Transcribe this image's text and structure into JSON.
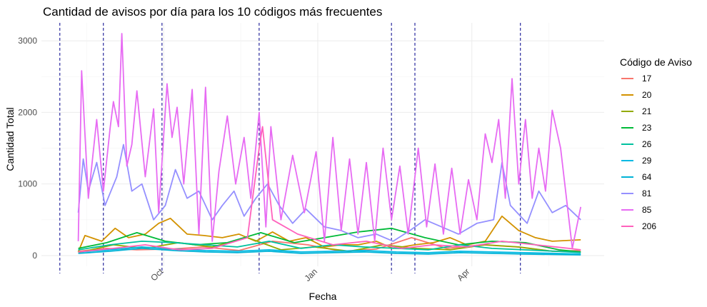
{
  "chart_data": {
    "type": "line",
    "title": "Cantidad de avisos por día para los 10 códigos más frecuentes",
    "xlabel": "Fecha",
    "ylabel": "Cantidad Total",
    "ylim": [
      -150,
      3250
    ],
    "yticks": [
      0,
      1000,
      2000,
      3000
    ],
    "xticks": [
      {
        "label": "Oct",
        "date": "2023-10-01"
      },
      {
        "label": "Jan",
        "date": "2024-01-01"
      },
      {
        "label": "Apr",
        "date": "2024-04-01"
      }
    ],
    "xlim": [
      "2023-07-20",
      "2024-06-20"
    ],
    "vlines": [
      "2023-07-31",
      "2023-08-26",
      "2023-09-30",
      "2023-11-27",
      "2024-02-14",
      "2024-02-28",
      "2024-05-01"
    ],
    "grid": true,
    "legend": {
      "title": "Código de Aviso",
      "placement": "right"
    },
    "series": [
      {
        "name": "17",
        "color": "#F8766D",
        "x": [
          "2023-08-11",
          "2023-08-28",
          "2023-09-15",
          "2023-10-05",
          "2023-10-25",
          "2023-11-15",
          "2023-12-05",
          "2023-12-26",
          "2024-01-15",
          "2024-02-05",
          "2024-02-26",
          "2024-03-18",
          "2024-04-08",
          "2024-04-29",
          "2024-05-20",
          "2024-06-06"
        ],
        "values": [
          60,
          100,
          80,
          90,
          120,
          70,
          200,
          150,
          60,
          90,
          250,
          100,
          150,
          120,
          60,
          70
        ]
      },
      {
        "name": "20",
        "color": "#D39200",
        "x": [
          "2023-08-11",
          "2023-08-15",
          "2023-08-25",
          "2023-09-02",
          "2023-09-10",
          "2023-09-20",
          "2023-09-28",
          "2023-10-05",
          "2023-10-15",
          "2023-10-25",
          "2023-11-05",
          "2023-11-15",
          "2023-11-25",
          "2023-12-05",
          "2023-12-15",
          "2023-12-25",
          "2024-01-05",
          "2024-01-15",
          "2024-01-25",
          "2024-02-05",
          "2024-02-15",
          "2024-02-28",
          "2024-03-10",
          "2024-03-20",
          "2024-03-30",
          "2024-04-10",
          "2024-04-20",
          "2024-04-30",
          "2024-05-10",
          "2024-05-20",
          "2024-06-06"
        ],
        "values": [
          50,
          280,
          200,
          380,
          250,
          300,
          450,
          520,
          300,
          280,
          250,
          300,
          200,
          330,
          200,
          250,
          120,
          150,
          150,
          200,
          100,
          150,
          180,
          250,
          150,
          200,
          550,
          350,
          250,
          200,
          220
        ]
      },
      {
        "name": "21",
        "color": "#93AA00",
        "x": [
          "2023-08-11",
          "2023-09-01",
          "2023-09-20",
          "2023-10-10",
          "2023-10-30",
          "2023-11-20",
          "2023-12-10",
          "2023-12-30",
          "2024-01-20",
          "2024-02-09",
          "2024-02-29",
          "2024-03-20",
          "2024-04-10",
          "2024-04-30",
          "2024-05-20",
          "2024-06-06"
        ],
        "values": [
          40,
          150,
          100,
          180,
          120,
          250,
          80,
          120,
          60,
          150,
          100,
          80,
          150,
          120,
          60,
          50
        ]
      },
      {
        "name": "23",
        "color": "#00BA38",
        "x": [
          "2023-08-11",
          "2023-08-28",
          "2023-09-15",
          "2023-10-02",
          "2023-10-20",
          "2023-11-08",
          "2023-11-28",
          "2023-12-18",
          "2024-01-05",
          "2024-01-25",
          "2024-02-14",
          "2024-03-05",
          "2024-03-25",
          "2024-04-14",
          "2024-05-04",
          "2024-05-24",
          "2024-06-06"
        ],
        "values": [
          100,
          180,
          320,
          200,
          150,
          180,
          320,
          180,
          250,
          330,
          380,
          250,
          150,
          200,
          180,
          80,
          50
        ]
      },
      {
        "name": "26",
        "color": "#00C19F",
        "x": [
          "2023-08-11",
          "2023-08-30",
          "2023-09-18",
          "2023-10-07",
          "2023-10-26",
          "2023-11-14",
          "2023-12-03",
          "2023-12-22",
          "2024-01-10",
          "2024-01-29",
          "2024-02-17",
          "2024-03-07",
          "2024-03-26",
          "2024-04-14",
          "2024-05-03",
          "2024-05-22",
          "2024-06-06"
        ],
        "values": [
          80,
          150,
          200,
          180,
          150,
          120,
          200,
          100,
          150,
          120,
          100,
          80,
          150,
          100,
          80,
          60,
          40
        ]
      },
      {
        "name": "29",
        "color": "#00B9E3",
        "x": [
          "2023-08-11",
          "2023-08-30",
          "2023-09-18",
          "2023-10-07",
          "2023-10-26",
          "2023-11-14",
          "2023-12-03",
          "2023-12-22",
          "2024-01-10",
          "2024-01-29",
          "2024-02-17",
          "2024-03-07",
          "2024-03-26",
          "2024-04-14",
          "2024-05-03",
          "2024-05-22",
          "2024-06-06"
        ],
        "values": [
          50,
          80,
          120,
          90,
          70,
          60,
          80,
          50,
          60,
          70,
          50,
          40,
          60,
          50,
          40,
          30,
          20
        ]
      },
      {
        "name": "64",
        "color": "#00B2D6",
        "x": [
          "2023-08-11",
          "2023-08-30",
          "2023-09-18",
          "2023-10-07",
          "2023-10-26",
          "2023-11-14",
          "2023-12-03",
          "2023-12-22",
          "2024-01-10",
          "2024-01-29",
          "2024-02-17",
          "2024-03-07",
          "2024-03-26",
          "2024-04-14",
          "2024-05-03",
          "2024-05-22",
          "2024-06-06"
        ],
        "values": [
          30,
          60,
          100,
          70,
          50,
          40,
          60,
          30,
          40,
          50,
          30,
          20,
          40,
          30,
          20,
          15,
          10
        ]
      },
      {
        "name": "81",
        "color": "#9590FF",
        "x": [
          "2023-08-11",
          "2023-08-14",
          "2023-08-17",
          "2023-08-22",
          "2023-08-27",
          "2023-09-03",
          "2023-09-07",
          "2023-09-12",
          "2023-09-18",
          "2023-09-25",
          "2023-10-02",
          "2023-10-08",
          "2023-10-15",
          "2023-10-22",
          "2023-10-30",
          "2023-11-05",
          "2023-11-12",
          "2023-11-18",
          "2023-11-25",
          "2023-12-02",
          "2023-12-09",
          "2023-12-17",
          "2023-12-25",
          "2024-01-05",
          "2024-01-15",
          "2024-01-25",
          "2024-02-05",
          "2024-02-15",
          "2024-02-25",
          "2024-03-05",
          "2024-03-15",
          "2024-03-25",
          "2024-04-05",
          "2024-04-15",
          "2024-04-20",
          "2024-04-25",
          "2024-05-05",
          "2024-05-12",
          "2024-05-20",
          "2024-05-28",
          "2024-06-06"
        ],
        "values": [
          600,
          1350,
          900,
          1300,
          700,
          1100,
          1550,
          900,
          1000,
          500,
          700,
          1200,
          800,
          900,
          500,
          700,
          900,
          550,
          800,
          1000,
          700,
          450,
          650,
          400,
          350,
          250,
          300,
          200,
          350,
          500,
          400,
          300,
          450,
          500,
          1300,
          700,
          450,
          900,
          600,
          700,
          500
        ]
      },
      {
        "name": "85",
        "color": "#E76BF3",
        "x": [
          "2023-08-11",
          "2023-08-13",
          "2023-08-17",
          "2023-08-22",
          "2023-08-26",
          "2023-08-30",
          "2023-09-01",
          "2023-09-04",
          "2023-09-06",
          "2023-09-09",
          "2023-09-12",
          "2023-09-15",
          "2023-09-20",
          "2023-09-25",
          "2023-09-28",
          "2023-10-03",
          "2023-10-06",
          "2023-10-09",
          "2023-10-13",
          "2023-10-18",
          "2023-10-22",
          "2023-10-26",
          "2023-10-30",
          "2023-11-03",
          "2023-11-08",
          "2023-11-13",
          "2023-11-18",
          "2023-11-22",
          "2023-11-27",
          "2023-12-01",
          "2023-12-04",
          "2023-12-10",
          "2023-12-17",
          "2023-12-24",
          "2023-12-31",
          "2024-01-05",
          "2024-01-10",
          "2024-01-15",
          "2024-01-20",
          "2024-01-25",
          "2024-01-30",
          "2024-02-04",
          "2024-02-09",
          "2024-02-14",
          "2024-02-19",
          "2024-02-24",
          "2024-03-01",
          "2024-03-06",
          "2024-03-11",
          "2024-03-16",
          "2024-03-21",
          "2024-03-26",
          "2024-03-31",
          "2024-04-05",
          "2024-04-10",
          "2024-04-14",
          "2024-04-18",
          "2024-04-22",
          "2024-04-26",
          "2024-04-30",
          "2024-05-04",
          "2024-05-08",
          "2024-05-12",
          "2024-05-16",
          "2024-05-20",
          "2024-05-25",
          "2024-06-01",
          "2024-06-06"
        ],
        "values": [
          200,
          2580,
          800,
          1900,
          900,
          1780,
          2150,
          1800,
          3100,
          1250,
          1550,
          2300,
          1100,
          2050,
          600,
          2400,
          1650,
          2070,
          1000,
          2320,
          300,
          2350,
          200,
          1180,
          1950,
          1000,
          1650,
          800,
          2000,
          400,
          1800,
          500,
          1400,
          600,
          1450,
          200,
          1650,
          350,
          1350,
          300,
          1300,
          200,
          1500,
          500,
          1250,
          300,
          1500,
          400,
          1280,
          300,
          1220,
          300,
          1060,
          500,
          1700,
          1300,
          1900,
          800,
          2470,
          1000,
          1900,
          800,
          1500,
          900,
          2030,
          1500,
          100,
          680
        ]
      },
      {
        "name": "206",
        "color": "#FF62BC",
        "x": [
          "2023-08-11",
          "2023-09-01",
          "2023-09-20",
          "2023-10-10",
          "2023-10-30",
          "2023-11-20",
          "2023-11-27",
          "2023-11-29",
          "2023-12-05",
          "2023-12-20",
          "2024-01-10",
          "2024-01-30",
          "2024-02-20",
          "2024-03-10",
          "2024-03-30",
          "2024-04-20",
          "2024-05-10",
          "2024-05-30",
          "2024-06-06"
        ],
        "values": [
          50,
          100,
          150,
          80,
          100,
          250,
          1500,
          1800,
          500,
          300,
          150,
          200,
          100,
          150,
          120,
          200,
          150,
          100,
          80
        ]
      }
    ]
  }
}
